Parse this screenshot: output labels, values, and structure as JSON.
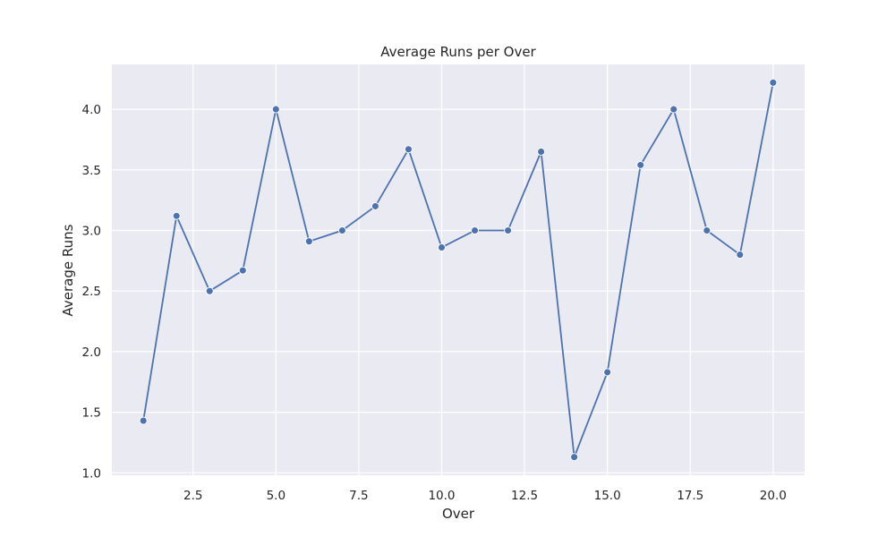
{
  "chart_data": {
    "type": "line",
    "title": "Average Runs per Over",
    "xlabel": "Over",
    "ylabel": "Average Runs",
    "xlim": [
      0.05,
      20.95
    ],
    "ylim": [
      0.98,
      4.37
    ],
    "xticks": [
      2.5,
      5.0,
      7.5,
      10.0,
      12.5,
      15.0,
      17.5,
      20.0
    ],
    "xtick_labels": [
      "2.5",
      "5.0",
      "7.5",
      "10.0",
      "12.5",
      "15.0",
      "17.5",
      "20.0"
    ],
    "yticks": [
      1.0,
      1.5,
      2.0,
      2.5,
      3.0,
      3.5,
      4.0
    ],
    "ytick_labels": [
      "1.0",
      "1.5",
      "2.0",
      "2.5",
      "3.0",
      "3.5",
      "4.0"
    ],
    "grid": true,
    "color": "#4c72b0",
    "background": "#eaeaf2",
    "x": [
      1,
      2,
      3,
      4,
      5,
      6,
      7,
      8,
      9,
      10,
      11,
      12,
      13,
      14,
      15,
      16,
      17,
      18,
      19,
      20
    ],
    "y": [
      1.43,
      3.12,
      2.5,
      2.67,
      4.0,
      2.91,
      3.0,
      3.2,
      3.67,
      2.86,
      3.0,
      3.0,
      3.65,
      1.13,
      1.83,
      3.54,
      4.0,
      3.0,
      2.8,
      4.22
    ]
  }
}
